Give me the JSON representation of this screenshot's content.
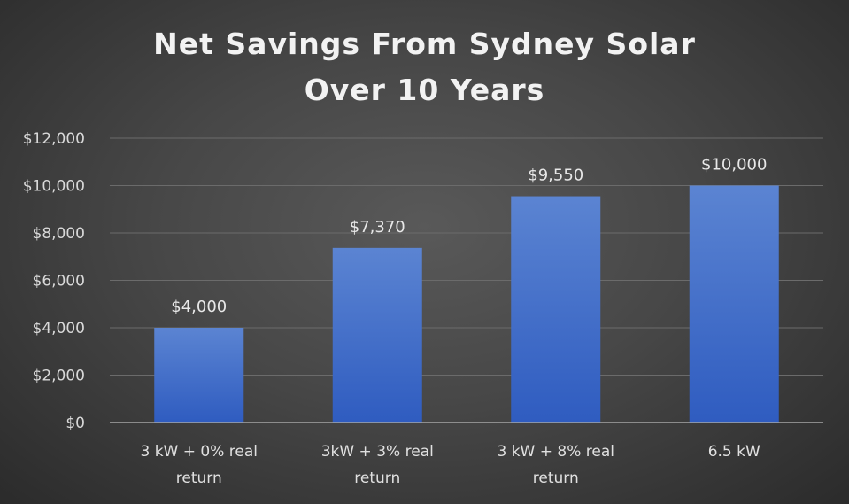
{
  "chart_data": {
    "type": "bar",
    "title": [
      "Net Savings From Sydney Solar",
      "Over 10 Years"
    ],
    "categories": [
      [
        "3 kW + 0% real",
        "return"
      ],
      [
        "3kW + 3% real",
        "return"
      ],
      [
        "3 kW + 8% real",
        "return"
      ],
      [
        "6.5 kW"
      ]
    ],
    "values": [
      4000,
      7370,
      9550,
      10000
    ],
    "data_labels": [
      "$4,000",
      "$7,370",
      "$9,550",
      "$10,000"
    ],
    "ylim": [
      0,
      12000
    ],
    "ytick_values": [
      0,
      2000,
      4000,
      6000,
      8000,
      10000,
      12000
    ],
    "ytick_labels": [
      "$0",
      "$2,000",
      "$4,000",
      "$6,000",
      "$8,000",
      "$10,000",
      "$12,000"
    ],
    "grid": true,
    "legend": "none",
    "colors": {
      "bar_top": "#5b84d2",
      "bar_bottom": "#2f5cc0",
      "grid": "#6b6b6b",
      "axis": "#a6a6a6"
    }
  }
}
